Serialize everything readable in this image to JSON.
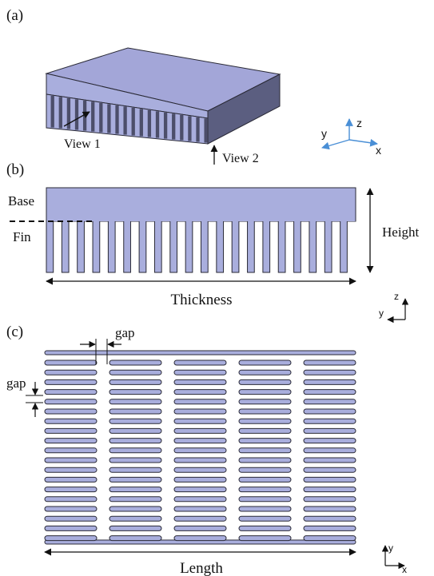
{
  "panels": {
    "a": {
      "label": "(a)",
      "view1": "View 1",
      "view2": "View 2",
      "axes": {
        "z": "z",
        "y": "y",
        "x": "x"
      }
    },
    "b": {
      "label": "(b)",
      "base": "Base",
      "fin": "Fin",
      "height": "Height",
      "thickness": "Thickness",
      "axes": {
        "z": "z",
        "y": "y"
      }
    },
    "c": {
      "label": "(c)",
      "gap_horizontal": "gap",
      "gap_vertical": "gap",
      "length": "Length",
      "axes": {
        "y": "y",
        "x": "x"
      }
    }
  },
  "colors": {
    "fin_fill": "#a9aedd",
    "top_face": "#a3a6d8",
    "side_face": "#5b5e80",
    "front_face": "#a9aedd",
    "slot_dark": "#4c4e6a",
    "axis_blue": "#4a8fd6",
    "outline": "#2a2a36"
  }
}
